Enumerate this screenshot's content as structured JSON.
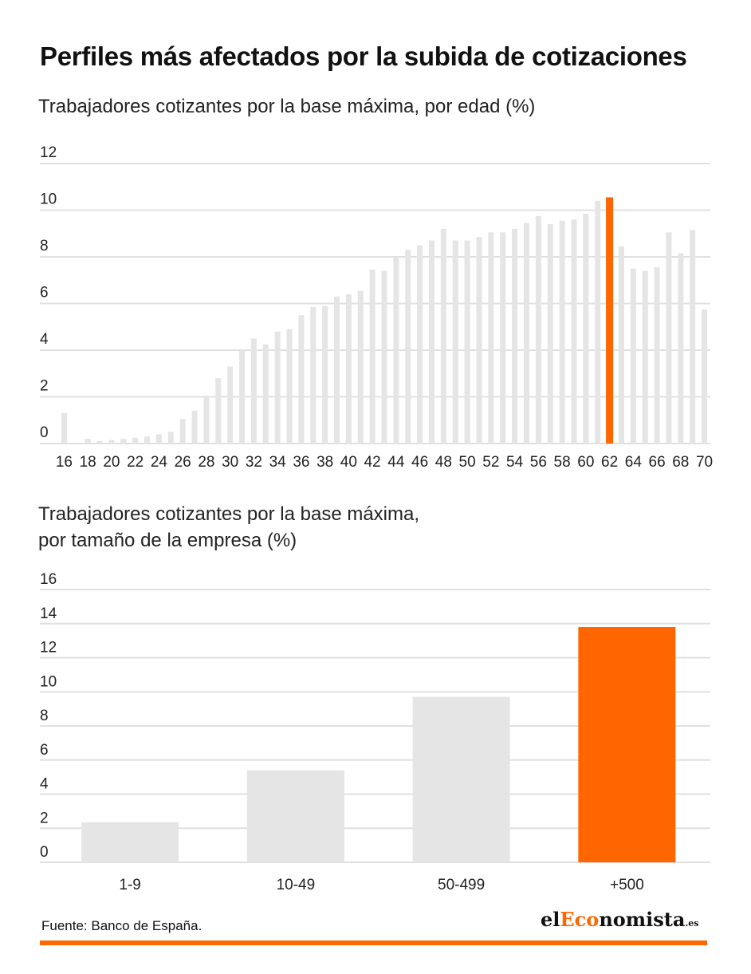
{
  "title": "Perfiles más afectados por la subida de cotizaciones",
  "source": "Fuente: Banco de España.",
  "logo": {
    "part1": "el",
    "part2": "Eco",
    "part3": "nomista",
    "part4": ".es"
  },
  "colors": {
    "highlight": "#ff6600",
    "bar": "#e5e5e5",
    "grid": "#e0e0e0"
  },
  "chart_data": [
    {
      "type": "bar",
      "subtitle_lines": [
        "Trabajadores cotizantes por la base máxima, por edad (%)"
      ],
      "x": [
        16,
        17,
        18,
        19,
        20,
        21,
        22,
        23,
        24,
        25,
        26,
        27,
        28,
        29,
        30,
        31,
        32,
        33,
        34,
        35,
        36,
        37,
        38,
        39,
        40,
        41,
        42,
        43,
        44,
        45,
        46,
        47,
        48,
        49,
        50,
        51,
        52,
        53,
        54,
        55,
        56,
        57,
        58,
        59,
        60,
        61,
        62,
        63,
        64,
        65,
        66,
        67,
        68,
        69,
        70
      ],
      "values": [
        1.3,
        0,
        0.2,
        0.1,
        0.15,
        0.2,
        0.25,
        0.3,
        0.4,
        0.5,
        1.05,
        1.4,
        2.05,
        2.8,
        3.3,
        4.0,
        4.5,
        4.25,
        4.8,
        4.9,
        5.5,
        5.85,
        5.9,
        6.3,
        6.4,
        6.55,
        7.45,
        7.4,
        8.0,
        8.3,
        8.5,
        8.7,
        9.2,
        8.7,
        8.7,
        8.85,
        9.05,
        9.05,
        9.2,
        9.45,
        9.75,
        9.4,
        9.55,
        9.6,
        9.85,
        10.4,
        10.55,
        8.45,
        7.5,
        7.4,
        7.55,
        9.05,
        8.15,
        9.15,
        5.75
      ],
      "highlight": 62,
      "x_tick_labels": [
        "16",
        "18",
        "20",
        "22",
        "24",
        "26",
        "28",
        "30",
        "32",
        "34",
        "36",
        "38",
        "40",
        "42",
        "44",
        "46",
        "48",
        "50",
        "52",
        "54",
        "56",
        "58",
        "60",
        "62",
        "64",
        "66",
        "68",
        "70"
      ],
      "y_ticks": [
        "0",
        "2",
        "4",
        "6",
        "8",
        "10",
        "12"
      ],
      "ylim": [
        0,
        12
      ]
    },
    {
      "type": "bar",
      "subtitle_lines": [
        "Trabajadores cotizantes por la base máxima,",
        "por tamaño de la empresa (%)"
      ],
      "categories": [
        "1-9",
        "10-49",
        "50-499",
        "+500"
      ],
      "values": [
        2.35,
        5.4,
        9.7,
        13.8
      ],
      "highlight": "+500",
      "y_ticks": [
        "0",
        "2",
        "4",
        "6",
        "8",
        "10",
        "12",
        "14",
        "16"
      ],
      "ylim": [
        0,
        16
      ]
    }
  ]
}
